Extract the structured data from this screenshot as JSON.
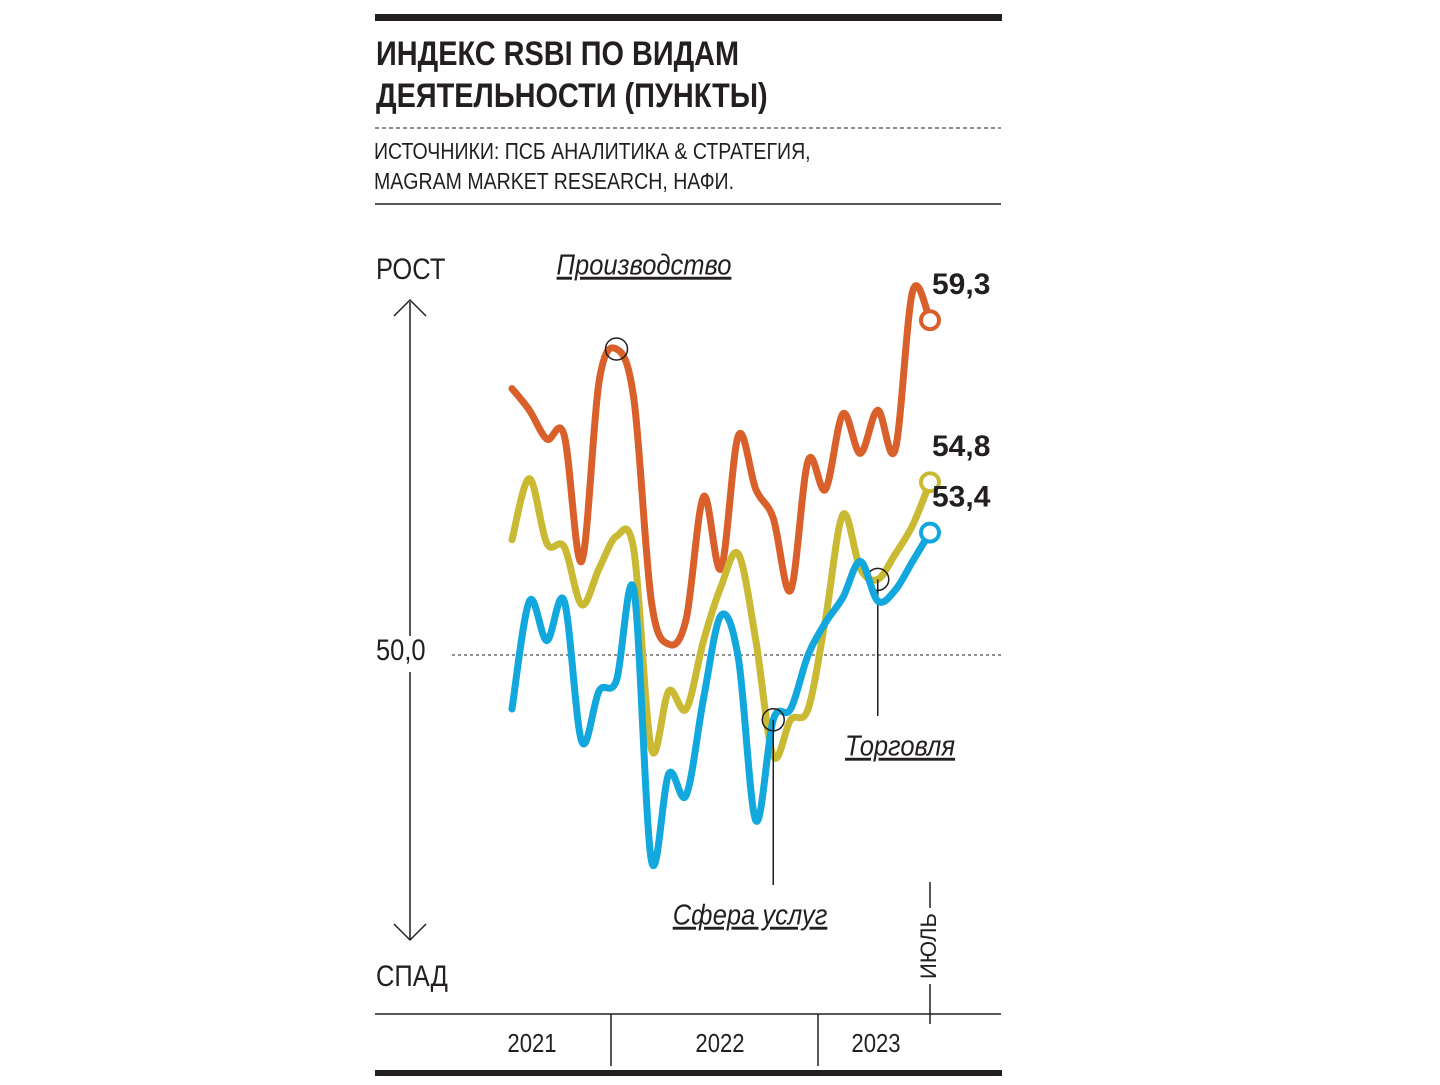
{
  "chart_data": {
    "type": "line",
    "title": [
      "ИНДЕКС RSBI ПО ВИДАМ",
      "ДЕЯТЕЛЬНОСТИ (ПУНКТЫ)"
    ],
    "source": [
      "ИСТОЧНИКИ: ПСБ АНАЛИТИКА & СТРАТЕГИЯ,",
      "MAGRAM MARKET RESEARCH, НАФИ."
    ],
    "y_top_label": "РОСТ",
    "y_bottom_label": "СПАД",
    "last_month_label": "ИЮЛЬ",
    "year_labels": [
      "2021",
      "2022",
      "2023"
    ],
    "categories": [
      null,
      null,
      null,
      null,
      null,
      null,
      null,
      null,
      null,
      null,
      null,
      null,
      null,
      null,
      null,
      null,
      null,
      null,
      null,
      null,
      null,
      null,
      null,
      null,
      null
    ],
    "ylim": [
      40,
      61
    ],
    "yticks": [
      {
        "value": 50,
        "label": "50,0"
      }
    ],
    "series": [
      {
        "name": "Производство",
        "color": "#d9602a",
        "values": [
          57.4,
          56.8,
          56.0,
          56.1,
          52.6,
          57.6,
          58.5,
          57.1,
          51.5,
          50.3,
          51.0,
          54.4,
          52.4,
          56.1,
          54.6,
          53.8,
          51.8,
          55.4,
          54.6,
          56.7,
          55.6,
          56.8,
          55.7,
          60.1,
          59.3
        ],
        "value_labels": [
          null,
          null,
          null,
          null,
          null,
          null,
          null,
          null,
          null,
          null,
          null,
          null,
          null,
          null,
          null,
          null,
          null,
          null,
          null,
          null,
          null,
          null,
          null,
          null,
          "59,3"
        ]
      },
      {
        "name": "Торговля",
        "color": "#c9b933",
        "values": [
          53.2,
          54.9,
          53.1,
          53.0,
          51.4,
          52.4,
          53.3,
          52.9,
          47.4,
          49.0,
          48.5,
          50.4,
          51.9,
          52.8,
          50.4,
          47.2,
          48.2,
          48.5,
          51.0,
          53.9,
          52.4,
          52.1,
          52.8,
          53.6,
          54.8
        ],
        "value_labels": [
          null,
          null,
          null,
          null,
          null,
          null,
          null,
          null,
          null,
          null,
          null,
          null,
          null,
          null,
          null,
          null,
          null,
          null,
          null,
          null,
          null,
          null,
          null,
          null,
          "54,8"
        ]
      },
      {
        "name": "Сфера услуг",
        "color": "#12a8dd",
        "values": [
          48.5,
          51.5,
          50.4,
          51.5,
          47.6,
          49.0,
          49.3,
          51.8,
          44.3,
          46.7,
          46.1,
          48.8,
          51.1,
          49.9,
          45.4,
          48.2,
          48.5,
          50.0,
          50.9,
          51.6,
          52.6,
          51.5,
          51.8,
          52.6,
          53.4
        ],
        "value_labels": [
          null,
          null,
          null,
          null,
          null,
          null,
          null,
          null,
          null,
          null,
          null,
          null,
          null,
          null,
          null,
          null,
          null,
          null,
          null,
          null,
          null,
          null,
          null,
          null,
          "53,4"
        ]
      }
    ]
  }
}
